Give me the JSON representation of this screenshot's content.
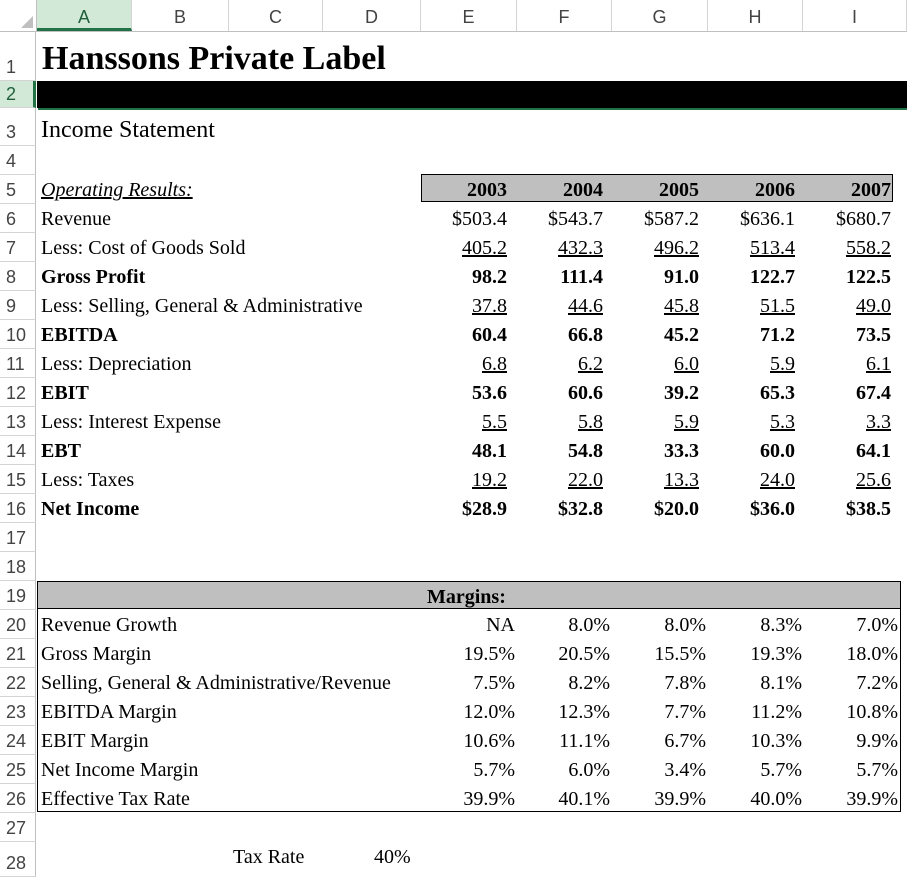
{
  "columns": [
    "A",
    "B",
    "C",
    "D",
    "E",
    "F",
    "G",
    "H",
    "I"
  ],
  "rows": [
    "1",
    "2",
    "3",
    "4",
    "5",
    "6",
    "7",
    "8",
    "9",
    "10",
    "11",
    "12",
    "13",
    "14",
    "15",
    "16",
    "17",
    "18",
    "19",
    "20",
    "21",
    "22",
    "23",
    "24",
    "25",
    "26",
    "27",
    "28"
  ],
  "sheet": {
    "title": "Hanssons Private Label",
    "subtitle": "Income Statement",
    "operating_label": "Operating Results:",
    "years": [
      "2003",
      "2004",
      "2005",
      "2006",
      "2007"
    ],
    "income": [
      {
        "label": "Revenue",
        "values": [
          "$503.4",
          "$543.7",
          "$587.2",
          "$636.1",
          "$680.7"
        ],
        "bold": false,
        "underline": false
      },
      {
        "label": "Less:  Cost of Goods Sold",
        "values": [
          "405.2",
          "432.3",
          "496.2",
          "513.4",
          "558.2"
        ],
        "bold": false,
        "underline": true
      },
      {
        "label": "Gross Profit",
        "values": [
          "98.2",
          "111.4",
          "91.0",
          "122.7",
          "122.5"
        ],
        "bold": true,
        "underline": false
      },
      {
        "label": "Less:  Selling, General & Administrative",
        "values": [
          "37.8",
          "44.6",
          "45.8",
          "51.5",
          "49.0"
        ],
        "bold": false,
        "underline": true
      },
      {
        "label": "EBITDA",
        "values": [
          "60.4",
          "66.8",
          "45.2",
          "71.2",
          "73.5"
        ],
        "bold": true,
        "underline": false
      },
      {
        "label": "Less:  Depreciation",
        "values": [
          "6.8",
          "6.2",
          "6.0",
          "5.9",
          "6.1"
        ],
        "bold": false,
        "underline": true
      },
      {
        "label": "EBIT",
        "values": [
          "53.6",
          "60.6",
          "39.2",
          "65.3",
          "67.4"
        ],
        "bold": true,
        "underline": false
      },
      {
        "label": "Less:  Interest Expense",
        "values": [
          "5.5",
          "5.8",
          "5.9",
          "5.3",
          "3.3"
        ],
        "bold": false,
        "underline": true
      },
      {
        "label": "EBT",
        "values": [
          "48.1",
          "54.8",
          "33.3",
          "60.0",
          "64.1"
        ],
        "bold": true,
        "underline": false
      },
      {
        "label": "Less:  Taxes",
        "values": [
          "19.2",
          "22.0",
          "13.3",
          "24.0",
          "25.6"
        ],
        "bold": false,
        "underline": true
      },
      {
        "label": "Net Income",
        "values": [
          "$28.9",
          "$32.8",
          "$20.0",
          "$36.0",
          "$38.5"
        ],
        "bold": true,
        "underline": false
      }
    ],
    "margins_label": "Margins:",
    "margins": [
      {
        "label": "Revenue Growth",
        "values": [
          "NA",
          "8.0%",
          "8.0%",
          "8.3%",
          "7.0%"
        ]
      },
      {
        "label": "Gross Margin",
        "values": [
          "19.5%",
          "20.5%",
          "15.5%",
          "19.3%",
          "18.0%"
        ]
      },
      {
        "label": "Selling, General & Administrative/Revenue",
        "values": [
          "7.5%",
          "8.2%",
          "7.8%",
          "8.1%",
          "7.2%"
        ]
      },
      {
        "label": "EBITDA Margin",
        "values": [
          "12.0%",
          "12.3%",
          "7.7%",
          "11.2%",
          "10.8%"
        ]
      },
      {
        "label": "EBIT Margin",
        "values": [
          "10.6%",
          "11.1%",
          "6.7%",
          "10.3%",
          "9.9%"
        ]
      },
      {
        "label": "Net Income Margin",
        "values": [
          "5.7%",
          "6.0%",
          "3.4%",
          "5.7%",
          "5.7%"
        ]
      },
      {
        "label": "Effective Tax Rate",
        "values": [
          "39.9%",
          "40.1%",
          "39.9%",
          "40.0%",
          "39.9%"
        ]
      }
    ],
    "tax_rate_label": "Tax Rate",
    "tax_rate_value": "40%"
  },
  "colors": {
    "selection": "#217346",
    "header_fill": "#bfbfbf"
  }
}
